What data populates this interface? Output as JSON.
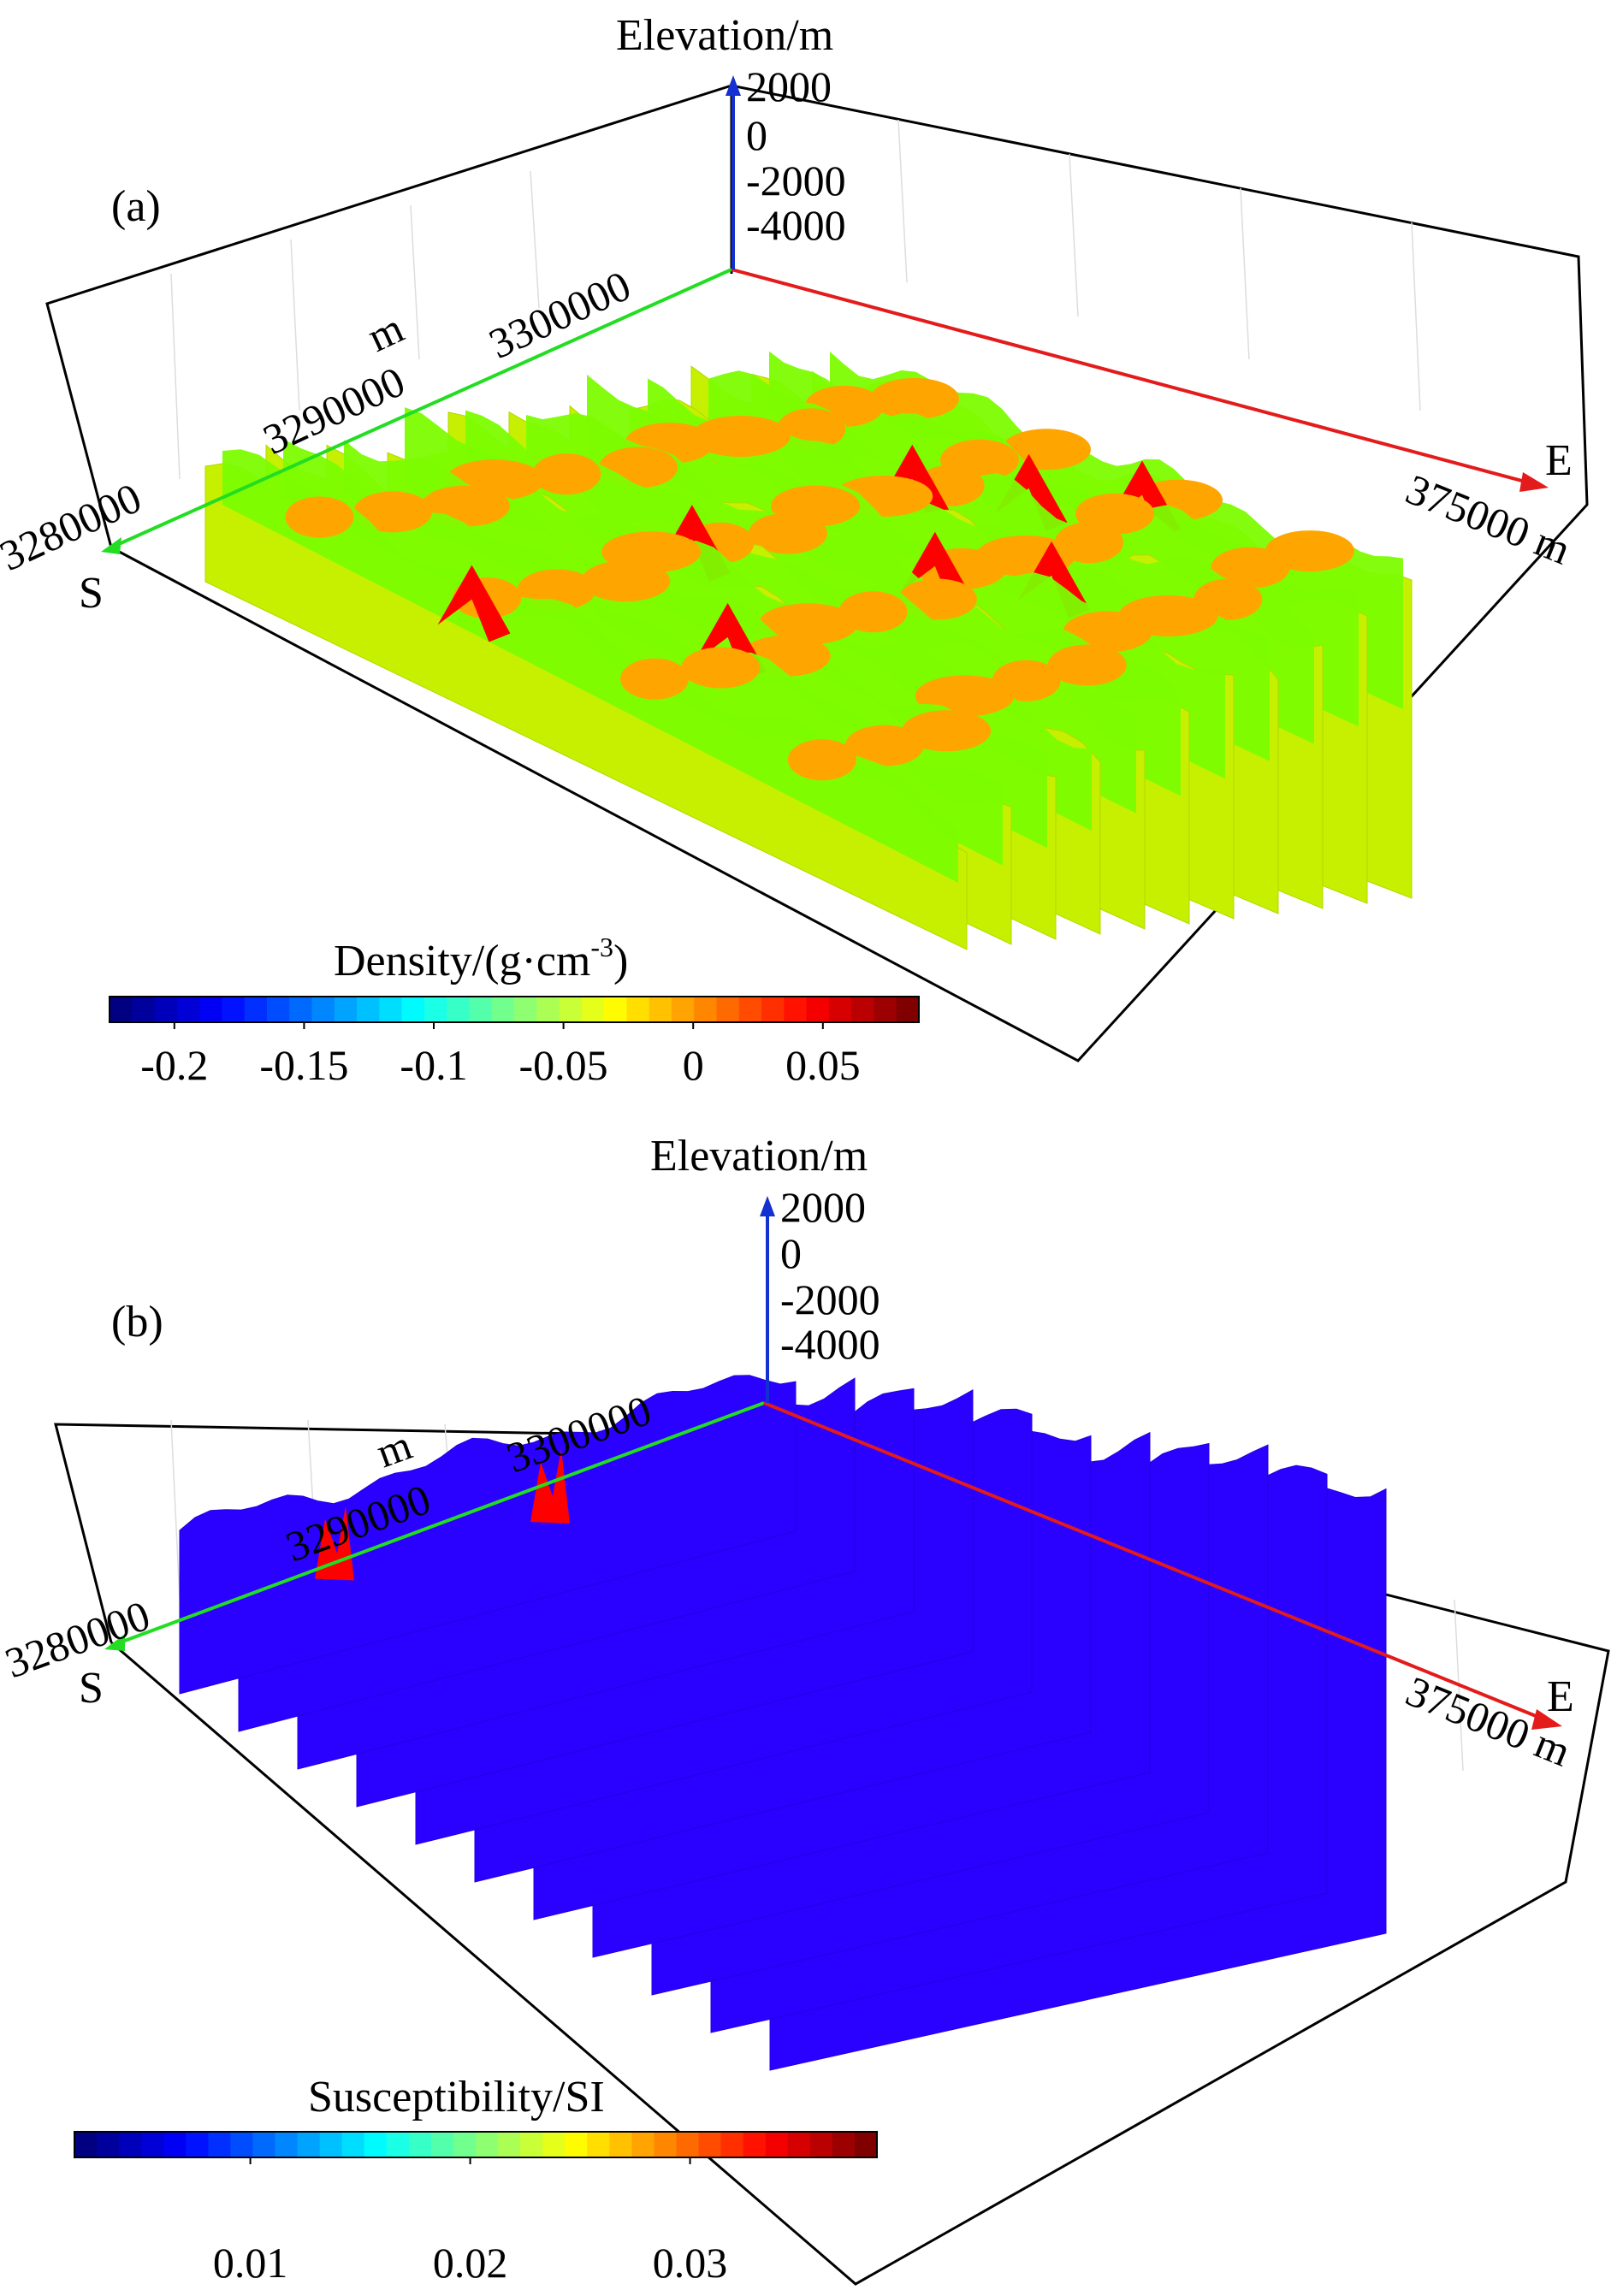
{
  "chart_data": [
    {
      "type": "3d-slices",
      "panel_label": "(a)",
      "z_axis_label": "Elevation/m",
      "z_ticks": [
        "2000",
        "0",
        "-2000",
        "-4000"
      ],
      "y_ticks": [
        "3280000",
        "3290000",
        "3300000"
      ],
      "y_unit": "m",
      "x_ticks": [
        "375000"
      ],
      "x_unit": "m",
      "south_label": "S",
      "east_label": "E",
      "colorbar": {
        "title": "Density/(g·cm",
        "title_sup": "-3",
        "title_end": ")",
        "ticks": [
          "-0.2",
          "-0.15",
          "-0.1",
          "-0.05",
          "0",
          "0.05"
        ],
        "tick_values": [
          -0.2,
          -0.15,
          -0.1,
          -0.05,
          0,
          0.05
        ],
        "range": [
          -0.225,
          0.087
        ]
      },
      "dominant_colors": {
        "background": "#c6f000",
        "mid": "#7cfc00",
        "upper": "#ffa500",
        "high": "#ff0000",
        "low": "#0000ff"
      }
    },
    {
      "type": "3d-slices",
      "panel_label": "(b)",
      "z_axis_label": "Elevation/m",
      "z_ticks": [
        "2000",
        "0",
        "-2000",
        "-4000"
      ],
      "y_ticks": [
        "3280000",
        "3290000",
        "3300000"
      ],
      "y_unit": "m",
      "x_ticks": [
        "375000"
      ],
      "x_unit": "m",
      "south_label": "S",
      "east_label": "E",
      "colorbar": {
        "title": "Susceptibility/SI",
        "ticks": [
          "0.01",
          "0.02",
          "0.03"
        ],
        "tick_values": [
          0.01,
          0.02,
          0.03
        ],
        "range": [
          0.002,
          0.0385
        ]
      },
      "dominant_colors": {
        "background": "#2a00ff",
        "high": "#ff0000"
      }
    }
  ]
}
